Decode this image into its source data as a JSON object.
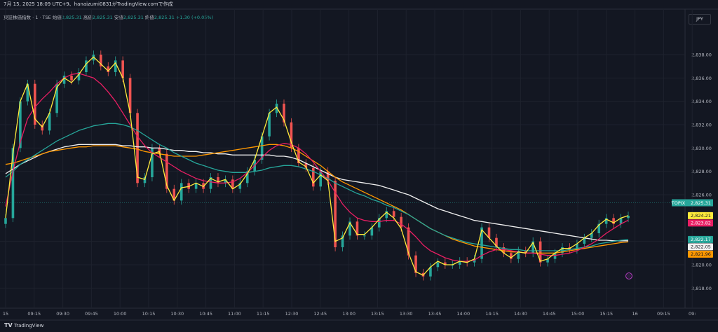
{
  "header": {
    "title": "7月 15, 2025 18:09 UTC+9、hanaizumi0831がTradingView.comで作成"
  },
  "legend": {
    "symbol": "東証株価指数 · 1 · TSE",
    "open_label": "始値",
    "open": "2,825.31",
    "high_label": "高値",
    "high": "2,825.31",
    "low_label": "安値",
    "low": "2,825.31",
    "close_label": "終値",
    "close": "2,825.31",
    "change": "+1.30 (+0.05%)"
  },
  "currency": "JPY",
  "footer": {
    "brand": "TradingView"
  },
  "colors": {
    "background": "#131722",
    "grid": "#1e222d",
    "up": "#26a69a",
    "down": "#ef5350",
    "ma_yellow": "#ffeb3b",
    "ma_pink": "#e91e63",
    "ma_teal": "#26a69a",
    "ma_orange": "#ff9800",
    "ma_white": "#f0f0f0"
  },
  "chart_data": {
    "type": "line",
    "ylim": [
      2816.4,
      2840.4
    ],
    "y_ticks": [
      2838.0,
      2836.0,
      2834.0,
      2832.0,
      2830.0,
      2828.0,
      2826.0,
      2822.0,
      2820.0,
      2818.0
    ],
    "y_tick_labels": [
      "2,838.00",
      "2,836.00",
      "2,834.00",
      "2,832.00",
      "2,830.00",
      "2,828.00",
      "2,826.00",
      "2,822.00",
      "2,820.00",
      "2,818.00"
    ],
    "x_ticks": [
      "15",
      "09:15",
      "09:30",
      "09:45",
      "10:00",
      "10:15",
      "10:30",
      "10:45",
      "11:00",
      "11:15",
      "12:30",
      "12:45",
      "13:00",
      "13:15",
      "13:30",
      "13:45",
      "14:00",
      "14:15",
      "14:30",
      "14:45",
      "15:00",
      "15:15",
      "16",
      "09:15",
      "09:"
    ],
    "price_tag": {
      "label": "TOPIX",
      "value": 2825.31,
      "text": "2,825.31"
    },
    "ma_tags": [
      {
        "value": 2824.21,
        "text": "2,824.21",
        "color": "#ffeb3b",
        "text_color": "#131722"
      },
      {
        "value": 2823.82,
        "text": "2,823.82",
        "color": "#e91e63",
        "text_color": "#ffffff"
      },
      {
        "value": 2822.17,
        "text": "2,822.17",
        "color": "#26a69a",
        "text_color": "#ffffff"
      },
      {
        "value": 2822.05,
        "text": "2,822.05",
        "color": "#f0f0f0",
        "text_color": "#131722"
      },
      {
        "value": 2821.96,
        "text": "2,821.96",
        "color": "#ff9800",
        "text_color": "#131722"
      }
    ],
    "candles_close": [
      2824,
      2830,
      2834,
      2835.5,
      2832,
      2831.5,
      2833,
      2835.5,
      2836.2,
      2835.8,
      2836.5,
      2837.5,
      2838,
      2837,
      2836.5,
      2837.5,
      2836,
      2833,
      2827,
      2827.5,
      2830,
      2829.5,
      2826.5,
      2825.5,
      2827,
      2826.5,
      2827,
      2826.5,
      2827.5,
      2827,
      2827.3,
      2826.5,
      2827,
      2828,
      2829,
      2831,
      2833,
      2833.8,
      2832.2,
      2830,
      2828.7,
      2828.3,
      2826.7,
      2828,
      2827.2,
      2821.5,
      2822.5,
      2823.7,
      2822.5,
      2822.5,
      2823.2,
      2824,
      2824.6,
      2824.1,
      2823.2,
      2820.8,
      2819.3,
      2819,
      2819.8,
      2820.2,
      2820,
      2820,
      2820.3,
      2820.2,
      2820.5,
      2823.2,
      2822.3,
      2821.5,
      2821,
      2820.5,
      2821.2,
      2821,
      2822,
      2820.2,
      2820.5,
      2821,
      2821.5,
      2821.3,
      2821.8,
      2822.3,
      2822.7,
      2823.5,
      2824,
      2823.5,
      2824,
      2824.2
    ],
    "series": [
      {
        "name": "",
        "color": "#ffeb3b",
        "values": [
          2824,
          2829.5,
          2834,
          2835.5,
          2832.5,
          2831.8,
          2833,
          2835.2,
          2836,
          2835.6,
          2836.3,
          2837.2,
          2837.8,
          2837.2,
          2836.6,
          2837.3,
          2836,
          2833,
          2827.5,
          2827.3,
          2829.5,
          2829.7,
          2826.8,
          2825.5,
          2826.6,
          2826.7,
          2827,
          2826.7,
          2827.4,
          2827.1,
          2827.3,
          2826.5,
          2826.9,
          2827.8,
          2829,
          2831,
          2833,
          2833.5,
          2832.4,
          2830.5,
          2828.8,
          2828.4,
          2827,
          2827.7,
          2827.2,
          2822,
          2822.3,
          2823.6,
          2822.6,
          2822.6,
          2823.2,
          2823.9,
          2824.5,
          2824,
          2823.1,
          2821,
          2819.4,
          2819.1,
          2819.8,
          2820.3,
          2820,
          2820,
          2820.3,
          2820.2,
          2820.5,
          2823,
          2822.3,
          2821.6,
          2821,
          2820.6,
          2821.1,
          2821,
          2821.9,
          2820.3,
          2820.5,
          2821,
          2821.4,
          2821.4,
          2821.8,
          2822.3,
          2822.7,
          2823.4,
          2823.9,
          2823.6,
          2824,
          2824.21
        ]
      },
      {
        "name": "",
        "color": "#e91e63",
        "values": [
          2825,
          2828,
          2830.5,
          2832.5,
          2833.5,
          2834.2,
          2834.8,
          2835.5,
          2836,
          2836.3,
          2836.4,
          2836.2,
          2836,
          2835.5,
          2834.8,
          2834,
          2833,
          2832,
          2831,
          2830.2,
          2829.6,
          2829.2,
          2828.8,
          2828.4,
          2828,
          2827.7,
          2827.4,
          2827.2,
          2827.1,
          2827,
          2827,
          2827.1,
          2827.4,
          2827.9,
          2828.5,
          2829.2,
          2829.8,
          2830.2,
          2830.4,
          2830.3,
          2830,
          2829.5,
          2828.8,
          2828,
          2827.2,
          2826.2,
          2825.2,
          2824.5,
          2824,
          2823.8,
          2823.7,
          2823.7,
          2823.8,
          2823.8,
          2823.5,
          2823,
          2822.4,
          2821.7,
          2821.2,
          2820.9,
          2820.6,
          2820.4,
          2820.3,
          2820.3,
          2820.4,
          2820.8,
          2821.1,
          2821.3,
          2821.3,
          2821.2,
          2821.1,
          2821,
          2821,
          2820.9,
          2820.8,
          2820.8,
          2820.9,
          2821,
          2821.2,
          2821.5,
          2821.8,
          2822.2,
          2822.7,
          2823.1,
          2823.5,
          2823.82
        ]
      },
      {
        "name": "",
        "color": "#26a69a",
        "values": [
          2827.5,
          2828,
          2828.6,
          2829,
          2829.4,
          2829.8,
          2830.2,
          2830.6,
          2830.9,
          2831.2,
          2831.5,
          2831.7,
          2831.9,
          2832,
          2832.1,
          2832.1,
          2832,
          2831.8,
          2831.5,
          2831.1,
          2830.7,
          2830.3,
          2830,
          2829.6,
          2829.3,
          2829,
          2828.7,
          2828.5,
          2828.3,
          2828.1,
          2828,
          2827.9,
          2827.9,
          2827.9,
          2828,
          2828.1,
          2828.3,
          2828.4,
          2828.5,
          2828.5,
          2828.4,
          2828.2,
          2828,
          2827.7,
          2827.4,
          2827,
          2826.7,
          2826.4,
          2826.1,
          2825.9,
          2825.6,
          2825.4,
          2825.1,
          2824.9,
          2824.6,
          2824.3,
          2823.9,
          2823.5,
          2823.1,
          2822.8,
          2822.5,
          2822.3,
          2822.1,
          2821.9,
          2821.8,
          2821.7,
          2821.6,
          2821.5,
          2821.4,
          2821.3,
          2821.3,
          2821.2,
          2821.2,
          2821.2,
          2821.2,
          2821.2,
          2821.2,
          2821.3,
          2821.4,
          2821.5,
          2821.6,
          2821.8,
          2821.9,
          2822,
          2822.1,
          2822.17
        ]
      },
      {
        "name": "",
        "color": "#ff9800",
        "values": [
          2828.6,
          2828.7,
          2828.9,
          2829.1,
          2829.3,
          2829.5,
          2829.7,
          2829.8,
          2829.9,
          2830,
          2830.1,
          2830.1,
          2830.2,
          2830.2,
          2830.2,
          2830.2,
          2830.1,
          2830,
          2829.9,
          2829.7,
          2829.6,
          2829.5,
          2829.4,
          2829.3,
          2829.3,
          2829.3,
          2829.3,
          2829.4,
          2829.5,
          2829.6,
          2829.7,
          2829.8,
          2829.9,
          2830,
          2830.1,
          2830.2,
          2830.3,
          2830.3,
          2830.2,
          2830,
          2829.7,
          2829.3,
          2828.9,
          2828.5,
          2828,
          2827.5,
          2827.1,
          2826.8,
          2826.5,
          2826.2,
          2825.9,
          2825.6,
          2825.3,
          2825,
          2824.7,
          2824.3,
          2823.9,
          2823.5,
          2823.1,
          2822.8,
          2822.5,
          2822.2,
          2822,
          2821.8,
          2821.6,
          2821.5,
          2821.4,
          2821.3,
          2821.2,
          2821.1,
          2821.1,
          2821,
          2821,
          2821,
          2821,
          2821,
          2821.1,
          2821.2,
          2821.3,
          2821.4,
          2821.5,
          2821.6,
          2821.7,
          2821.8,
          2821.9,
          2821.96
        ]
      },
      {
        "name": "",
        "color": "#f0f0f0",
        "values": [
          2827.8,
          2828.2,
          2828.6,
          2828.9,
          2829.2,
          2829.5,
          2829.7,
          2829.9,
          2830.1,
          2830.2,
          2830.3,
          2830.3,
          2830.3,
          2830.3,
          2830.3,
          2830.3,
          2830.2,
          2830.2,
          2830.1,
          2830.1,
          2830,
          2830,
          2829.9,
          2829.8,
          2829.8,
          2829.7,
          2829.7,
          2829.6,
          2829.6,
          2829.5,
          2829.5,
          2829.4,
          2829.4,
          2829.4,
          2829.4,
          2829.4,
          2829.4,
          2829.3,
          2829.3,
          2829.2,
          2829,
          2828.7,
          2828.4,
          2828.1,
          2827.8,
          2827.5,
          2827.3,
          2827.2,
          2827.1,
          2827,
          2826.9,
          2826.8,
          2826.6,
          2826.4,
          2826.2,
          2826,
          2825.7,
          2825.4,
          2825.1,
          2824.8,
          2824.6,
          2824.4,
          2824.2,
          2824,
          2823.8,
          2823.7,
          2823.6,
          2823.5,
          2823.4,
          2823.3,
          2823.2,
          2823.1,
          2823,
          2822.9,
          2822.8,
          2822.7,
          2822.6,
          2822.5,
          2822.4,
          2822.3,
          2822.2,
          2822.1,
          2822.1,
          2822.05,
          2822.05,
          2822.05
        ]
      }
    ]
  }
}
